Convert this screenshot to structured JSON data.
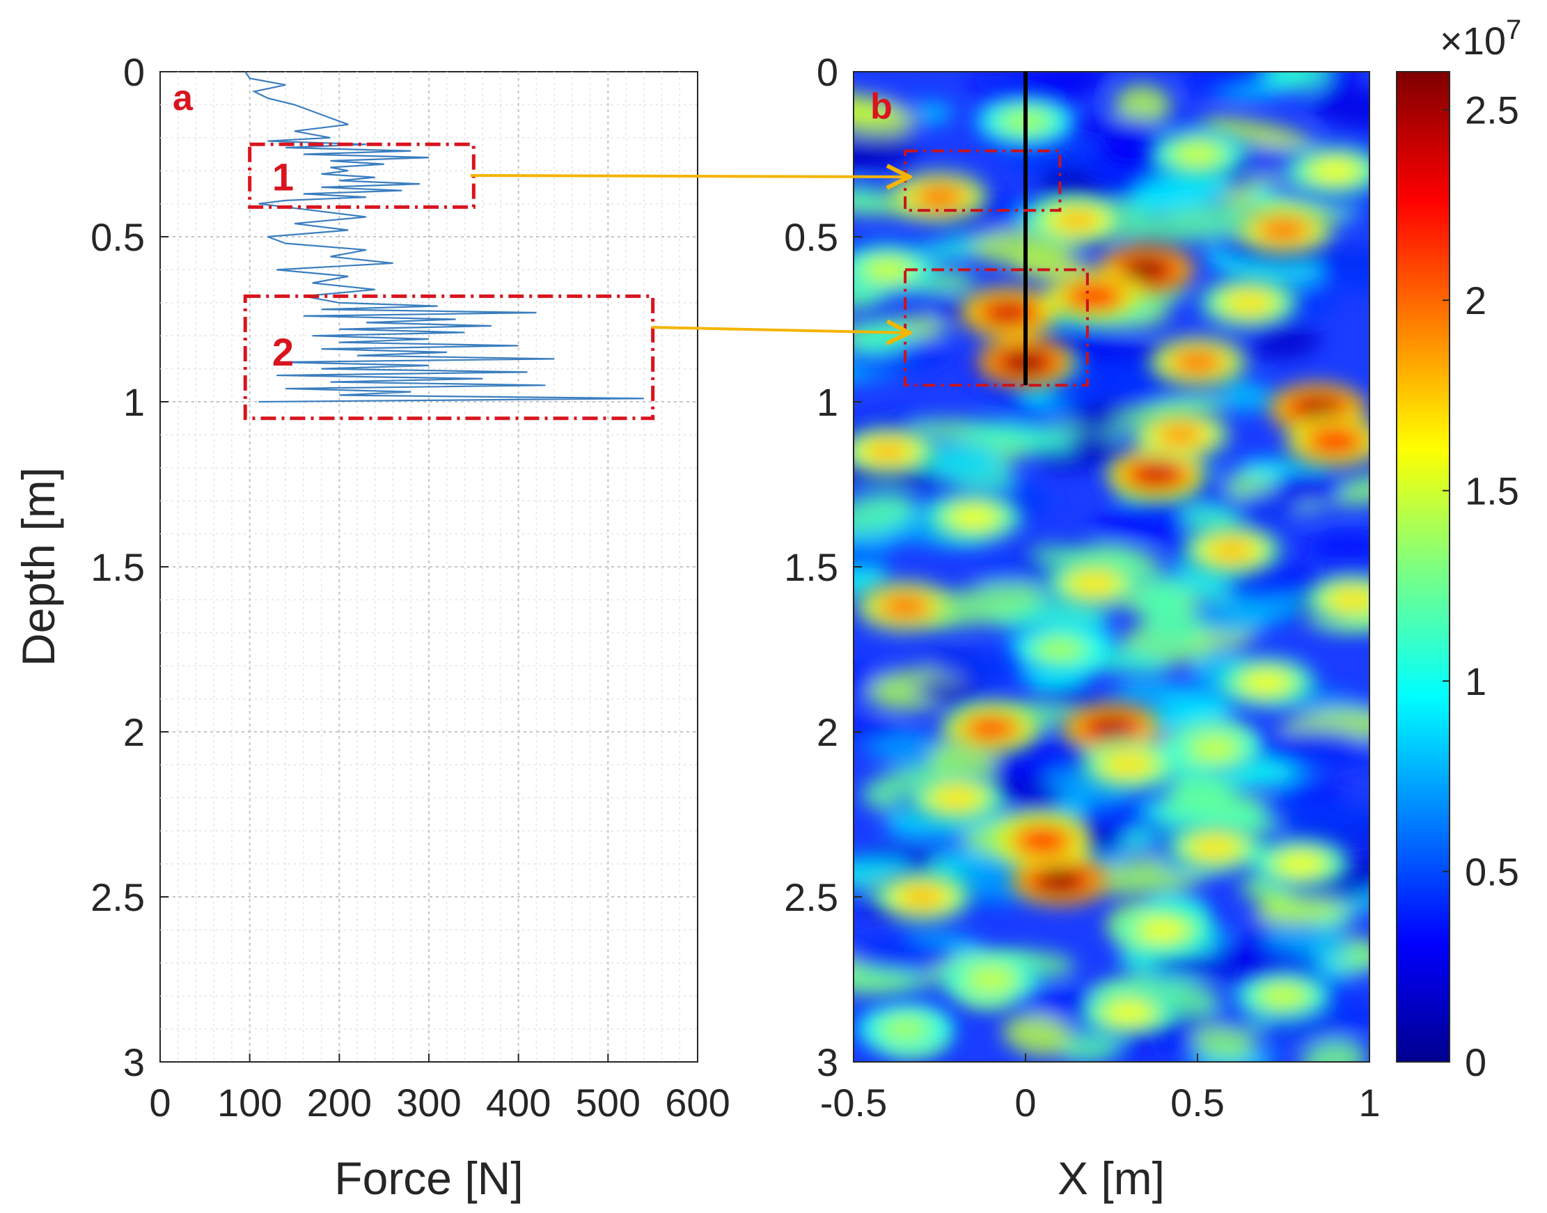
{
  "chart_data": [
    {
      "type": "line",
      "panel": "a",
      "xlabel": "Force [N]",
      "ylabel": "Depth [m]",
      "xlim": [
        0,
        600
      ],
      "ylim": [
        3,
        0
      ],
      "xticks": [
        "0",
        "100",
        "200",
        "300",
        "400",
        "500",
        "600"
      ],
      "yticks": [
        "0",
        "0.5",
        "1",
        "1.5",
        "2",
        "2.5",
        "3"
      ],
      "grid": true,
      "series": [
        {
          "name": "Force",
          "color": "#3a7ebf",
          "depth": [
            0.0,
            0.02,
            0.04,
            0.06,
            0.08,
            0.1,
            0.12,
            0.14,
            0.16,
            0.18,
            0.2,
            0.21,
            0.22,
            0.23,
            0.24,
            0.25,
            0.26,
            0.27,
            0.28,
            0.29,
            0.3,
            0.31,
            0.32,
            0.33,
            0.34,
            0.35,
            0.36,
            0.37,
            0.38,
            0.39,
            0.4,
            0.42,
            0.44,
            0.46,
            0.48,
            0.5,
            0.52,
            0.54,
            0.56,
            0.58,
            0.6,
            0.62,
            0.64,
            0.66,
            0.68,
            0.7,
            0.71,
            0.72,
            0.73,
            0.74,
            0.75,
            0.76,
            0.77,
            0.78,
            0.79,
            0.8,
            0.81,
            0.82,
            0.83,
            0.84,
            0.85,
            0.86,
            0.87,
            0.88,
            0.89,
            0.9,
            0.91,
            0.92,
            0.93,
            0.94,
            0.95,
            0.96,
            0.97,
            0.98,
            0.99,
            1.0
          ],
          "force": [
            95,
            100,
            140,
            105,
            120,
            150,
            170,
            190,
            210,
            150,
            190,
            120,
            230,
            140,
            280,
            160,
            300,
            190,
            250,
            190,
            210,
            180,
            240,
            200,
            290,
            180,
            270,
            160,
            230,
            140,
            110,
            170,
            230,
            150,
            210,
            120,
            140,
            230,
            190,
            260,
            130,
            210,
            170,
            240,
            160,
            200,
            310,
            180,
            420,
            160,
            330,
            230,
            370,
            200,
            340,
            170,
            300,
            200,
            400,
            180,
            320,
            220,
            440,
            130,
            300,
            180,
            410,
            130,
            360,
            190,
            430,
            140,
            280,
            200,
            540,
            110
          ]
        }
      ],
      "annotations": [
        {
          "label": "1",
          "depth_range": [
            0.22,
            0.41
          ],
          "force_range": [
            100,
            350
          ]
        },
        {
          "label": "2",
          "depth_range": [
            0.68,
            1.05
          ],
          "force_range": [
            95,
            550
          ]
        }
      ]
    },
    {
      "type": "heatmap",
      "panel": "b",
      "xlabel": "X [m]",
      "ylabel": "",
      "xlim": [
        -0.5,
        1
      ],
      "ylim": [
        3,
        0
      ],
      "xticks": [
        "-0.5",
        "0",
        "0.5",
        "1"
      ],
      "yticks": [
        "0",
        "0.5",
        "1",
        "1.5",
        "2",
        "2.5",
        "3"
      ],
      "colormap": "jet",
      "clim": [
        0,
        2.6
      ],
      "colorbar_ticks": [
        "0",
        "0.5",
        "1",
        "1.5",
        "2",
        "2.5"
      ],
      "colorbar_multiplier": "×10",
      "colorbar_exponent": "7",
      "vertical_line_x": 0,
      "vertical_line_depth": [
        0,
        0.95
      ],
      "annotations": [
        {
          "label": "1",
          "x_range": [
            -0.35,
            0.1
          ],
          "depth_range": [
            0.24,
            0.42
          ]
        },
        {
          "label": "2",
          "x_range": [
            -0.35,
            0.18
          ],
          "depth_range": [
            0.6,
            0.95
          ]
        }
      ],
      "hotspots": [
        {
          "x": 0.35,
          "depth": 0.6,
          "peak": 2.6
        },
        {
          "x": 0.0,
          "depth": 0.88,
          "peak": 2.6
        },
        {
          "x": -0.05,
          "depth": 0.73,
          "peak": 2.4
        },
        {
          "x": 0.2,
          "depth": 0.68,
          "peak": 2.2
        },
        {
          "x": 0.85,
          "depth": 1.02,
          "peak": 2.5
        },
        {
          "x": 0.38,
          "depth": 1.22,
          "peak": 2.4
        },
        {
          "x": 0.1,
          "depth": 2.45,
          "peak": 2.6
        },
        {
          "x": 0.05,
          "depth": 2.33,
          "peak": 2.2
        },
        {
          "x": 0.25,
          "depth": 1.99,
          "peak": 2.5
        },
        {
          "x": -0.1,
          "depth": 1.99,
          "peak": 2.1
        },
        {
          "x": 0.75,
          "depth": 0.48,
          "peak": 2.0
        },
        {
          "x": -0.25,
          "depth": 0.38,
          "peak": 2.0
        },
        {
          "x": 0.5,
          "depth": 0.88,
          "peak": 2.0
        },
        {
          "x": 0.9,
          "depth": 1.12,
          "peak": 2.2
        },
        {
          "x": -0.35,
          "depth": 1.62,
          "peak": 2.0
        },
        {
          "x": 0.6,
          "depth": 1.45,
          "peak": 1.8
        },
        {
          "x": -0.4,
          "depth": 1.15,
          "peak": 1.8
        },
        {
          "x": 0.3,
          "depth": 2.1,
          "peak": 1.7
        },
        {
          "x": 0.9,
          "depth": 0.3,
          "peak": 1.6
        },
        {
          "x": 0.15,
          "depth": 0.45,
          "peak": 1.8
        },
        {
          "x": 0.65,
          "depth": 0.7,
          "peak": 1.7
        },
        {
          "x": -0.3,
          "depth": 2.5,
          "peak": 1.8
        },
        {
          "x": 0.55,
          "depth": 2.35,
          "peak": 1.7
        },
        {
          "x": 0.45,
          "depth": 1.1,
          "peak": 1.9
        },
        {
          "x": -0.15,
          "depth": 1.35,
          "peak": 1.6
        },
        {
          "x": 0.2,
          "depth": 1.55,
          "peak": 1.7
        },
        {
          "x": 0.7,
          "depth": 1.85,
          "peak": 1.6
        },
        {
          "x": -0.2,
          "depth": 2.2,
          "peak": 1.7
        },
        {
          "x": 0.4,
          "depth": 2.6,
          "peak": 1.6
        },
        {
          "x": 0.8,
          "depth": 2.4,
          "peak": 1.6
        },
        {
          "x": -0.1,
          "depth": 2.75,
          "peak": 1.5
        },
        {
          "x": 0.3,
          "depth": 2.85,
          "peak": 1.6
        },
        {
          "x": 0.75,
          "depth": 2.8,
          "peak": 1.5
        },
        {
          "x": -0.35,
          "depth": 2.9,
          "peak": 1.4
        },
        {
          "x": 0.95,
          "depth": 1.6,
          "peak": 1.7
        },
        {
          "x": 0.0,
          "depth": 0.15,
          "peak": 1.4
        },
        {
          "x": 0.5,
          "depth": 0.25,
          "peak": 1.5
        },
        {
          "x": -0.4,
          "depth": 0.6,
          "peak": 1.5
        },
        {
          "x": 0.1,
          "depth": 1.75,
          "peak": 1.4
        },
        {
          "x": 0.55,
          "depth": 2.05,
          "peak": 1.5
        }
      ]
    }
  ]
}
